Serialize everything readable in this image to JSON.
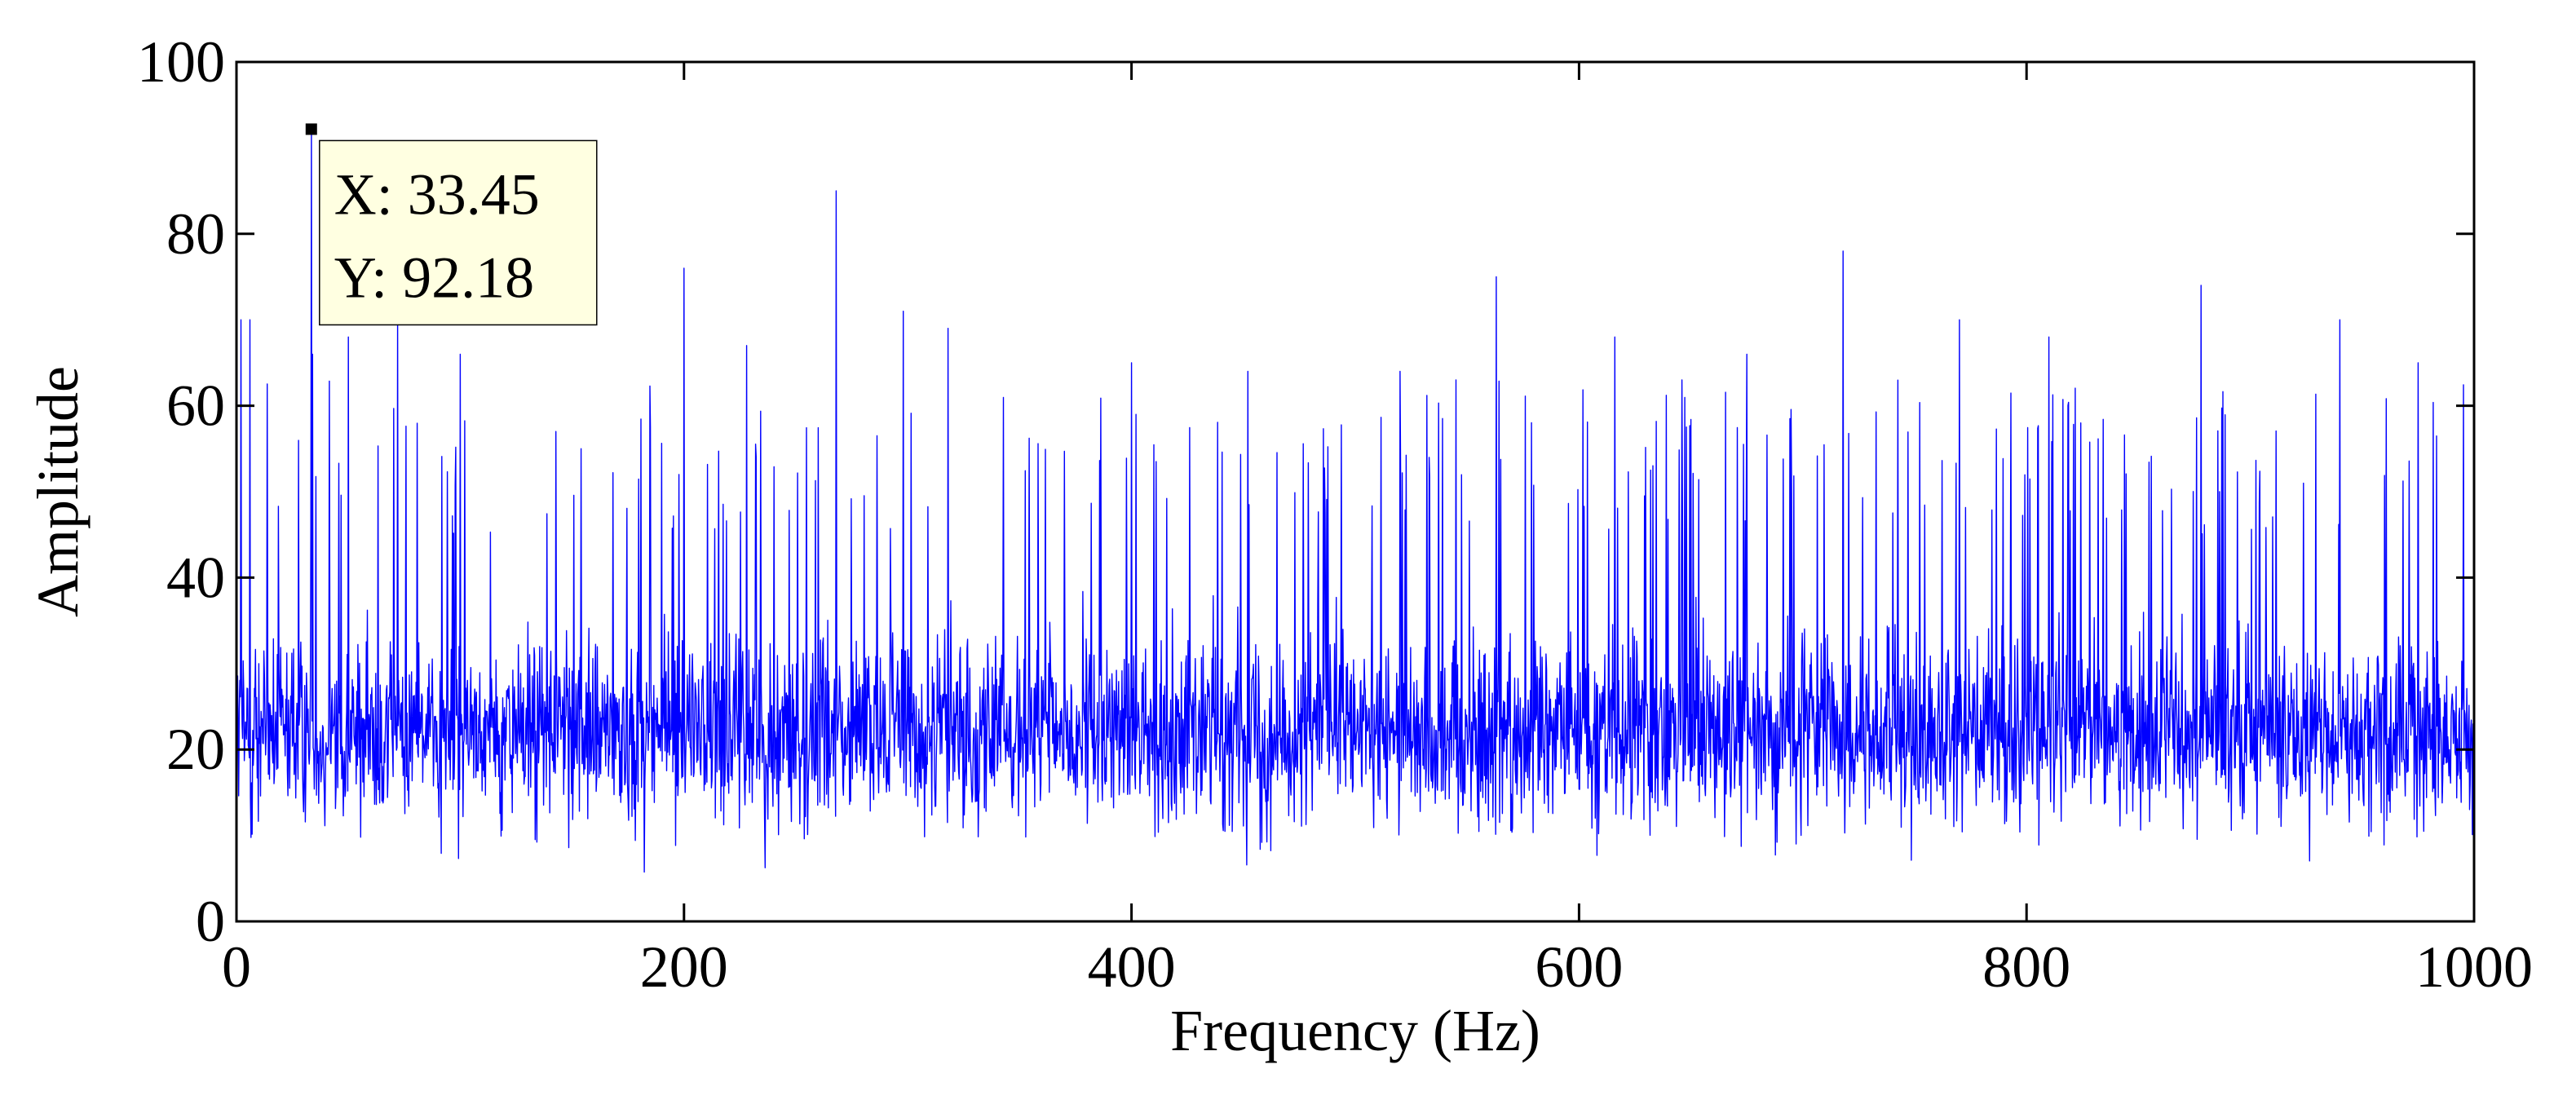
{
  "chart_data": {
    "type": "line",
    "title": "",
    "xlabel": "Frequency (Hz)",
    "ylabel": "Amplitude",
    "xlim": [
      0,
      1000
    ],
    "ylim": [
      0,
      100
    ],
    "x_ticks": [
      0,
      200,
      400,
      600,
      800,
      1000
    ],
    "y_ticks": [
      0,
      20,
      40,
      60,
      80,
      100
    ],
    "grid": false,
    "legend": "none",
    "series": [
      {
        "color": "#0000ff",
        "sample_interval_hz": 0.25,
        "baseline_band": [
          5,
          45
        ],
        "typical_level": 22,
        "prominent_peaks": [
          {
            "x": 2.0,
            "y": 70
          },
          {
            "x": 6.0,
            "y": 70
          },
          {
            "x": 33.45,
            "y": 92.18
          },
          {
            "x": 34.0,
            "y": 66
          },
          {
            "x": 50.0,
            "y": 68
          },
          {
            "x": 72.0,
            "y": 70
          },
          {
            "x": 100.0,
            "y": 66
          },
          {
            "x": 200.0,
            "y": 76
          },
          {
            "x": 228.0,
            "y": 67
          },
          {
            "x": 268.0,
            "y": 85
          },
          {
            "x": 298.0,
            "y": 71
          },
          {
            "x": 318.0,
            "y": 69
          },
          {
            "x": 400.0,
            "y": 65
          },
          {
            "x": 452.0,
            "y": 64
          },
          {
            "x": 520.0,
            "y": 64
          },
          {
            "x": 563.0,
            "y": 75
          },
          {
            "x": 616.0,
            "y": 68
          },
          {
            "x": 675.0,
            "y": 66
          },
          {
            "x": 718.0,
            "y": 78
          },
          {
            "x": 770.0,
            "y": 70
          },
          {
            "x": 810.0,
            "y": 68
          },
          {
            "x": 878.0,
            "y": 74
          },
          {
            "x": 940.0,
            "y": 70
          },
          {
            "x": 975.0,
            "y": 65
          }
        ]
      }
    ],
    "datatip": {
      "x_label": "X: 33.45",
      "y_label": "Y: 92.18",
      "x": 33.45,
      "y": 92.18,
      "background": "#ffffe1"
    }
  }
}
